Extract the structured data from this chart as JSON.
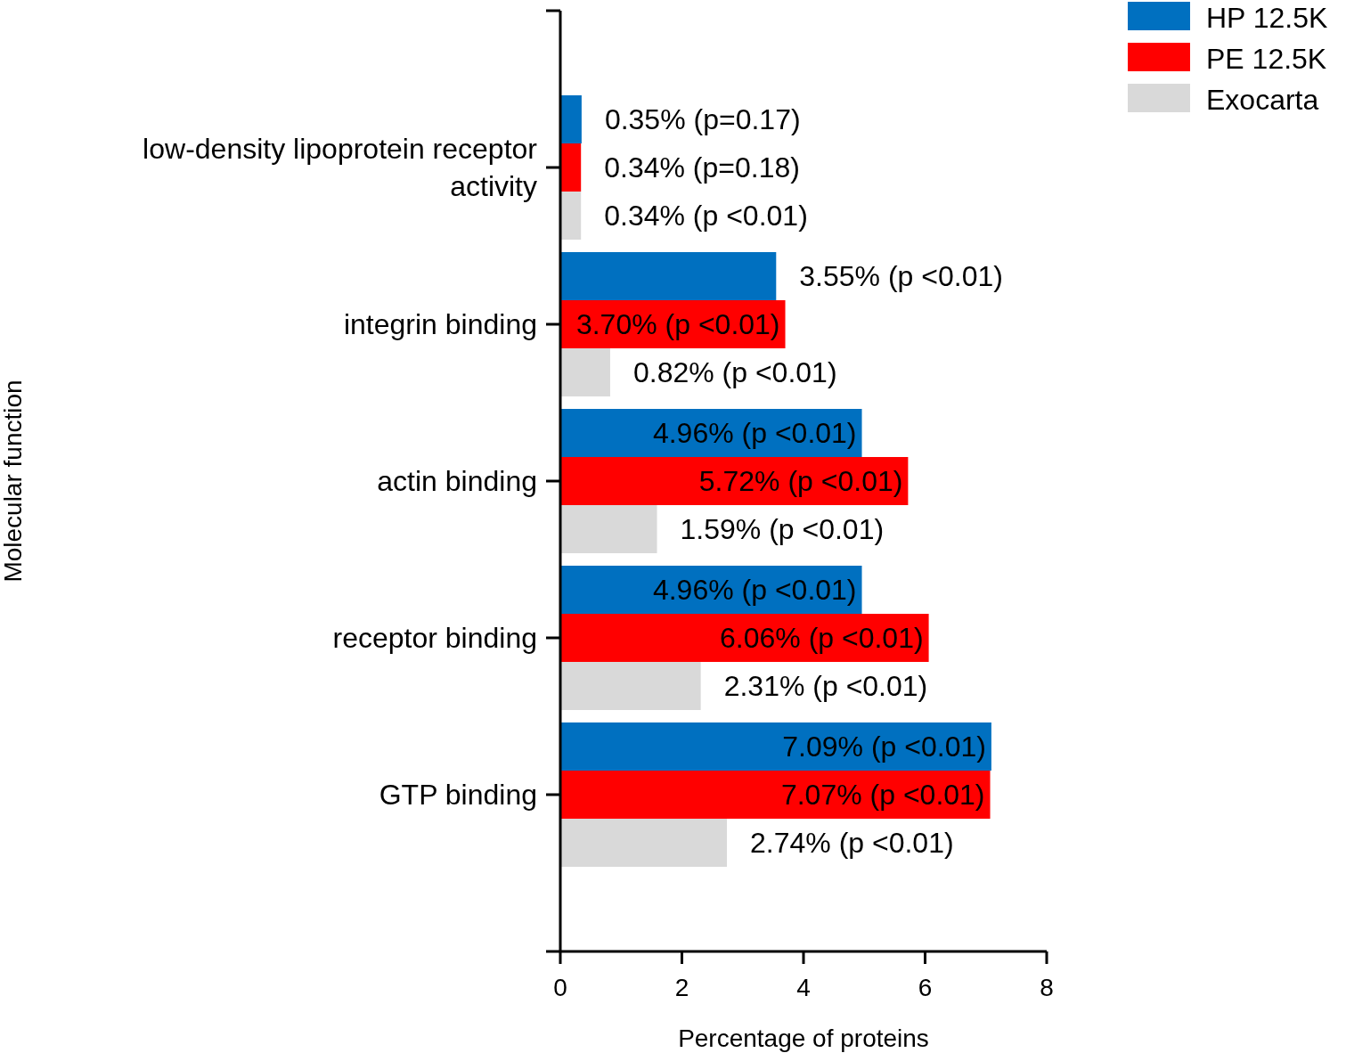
{
  "chart_data": {
    "type": "bar",
    "orientation": "horizontal",
    "xlabel": "Percentage of proteins",
    "ylabel": "Molecular function",
    "categories": [
      "low-density lipoprotein receptor activity",
      "integrin binding",
      "actin binding",
      "receptor binding",
      "GTP binding"
    ],
    "series": [
      {
        "name": "HP 12.5K",
        "color": "#0070c0",
        "values": [
          0.35,
          3.55,
          4.96,
          4.96,
          7.09
        ],
        "value_labels": [
          "0.35% (p=0.17)",
          "3.55% (p <0.01)",
          "4.96% (p <0.01)",
          "4.96% (p <0.01)",
          "7.09% (p <0.01)"
        ]
      },
      {
        "name": "PE 12.5K",
        "color": "#ff0000",
        "values": [
          0.34,
          3.7,
          5.72,
          6.06,
          7.07
        ],
        "value_labels": [
          "0.34% (p=0.18)",
          "3.70% (p <0.01)",
          "5.72% (p <0.01)",
          "6.06% (p <0.01)",
          "7.07% (p <0.01)"
        ]
      },
      {
        "name": "Exocarta",
        "color": "#d9d9d9",
        "values": [
          0.34,
          0.82,
          1.59,
          2.31,
          2.74
        ],
        "value_labels": [
          "0.34% (p <0.01)",
          "0.82% (p <0.01)",
          "1.59% (p <0.01)",
          "2.31% (p <0.01)",
          "2.74% (p <0.01)"
        ]
      }
    ],
    "xlim": [
      0,
      8
    ],
    "xticks": [
      0,
      2,
      4,
      6,
      8
    ],
    "legend": "top right",
    "grid": false
  }
}
